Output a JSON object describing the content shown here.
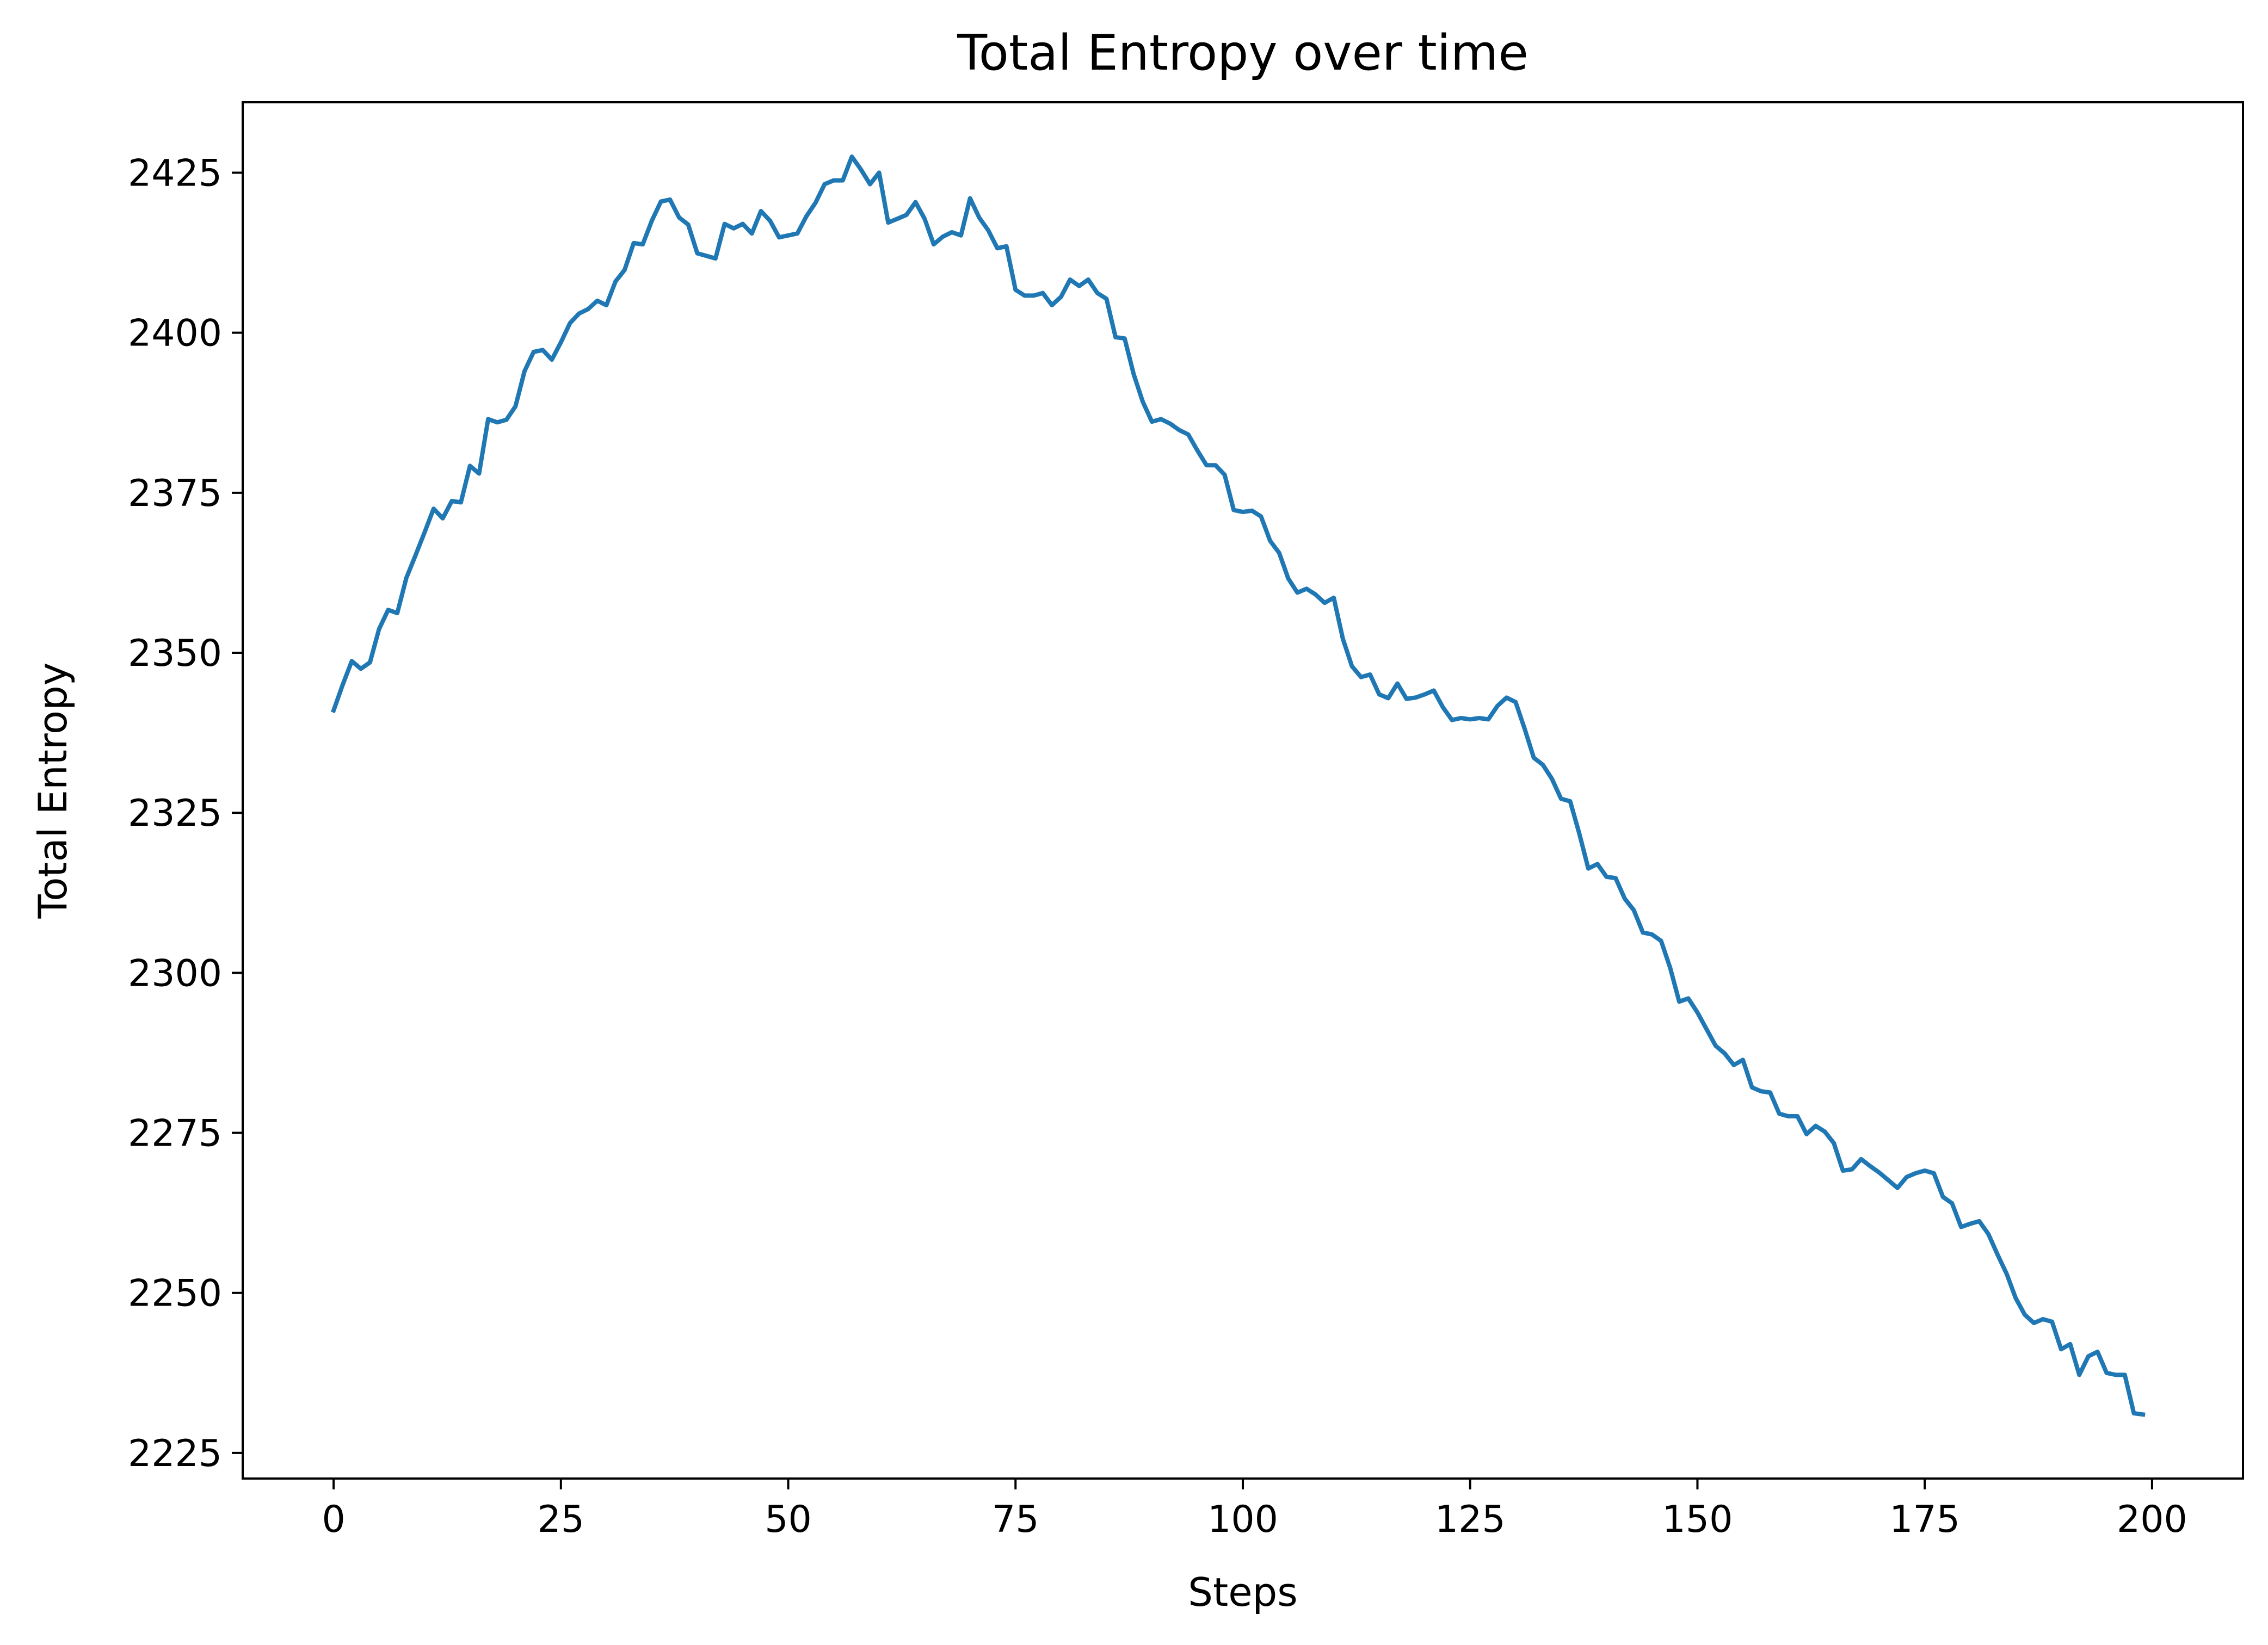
{
  "chart_data": {
    "type": "line",
    "title": "Total Entropy over time",
    "xlabel": "Steps",
    "ylabel": "Total Entropy",
    "xlim": [
      -10,
      210
    ],
    "ylim": [
      2221,
      2436
    ],
    "xticks": [
      0,
      25,
      50,
      75,
      100,
      125,
      150,
      175,
      200
    ],
    "xtick_labels": [
      "0",
      "25",
      "50",
      "75",
      "100",
      "125",
      "150",
      "175",
      "200"
    ],
    "yticks": [
      2225,
      2250,
      2275,
      2300,
      2325,
      2350,
      2375,
      2400,
      2425
    ],
    "ytick_labels": [
      "2225",
      "2250",
      "2275",
      "2300",
      "2325",
      "2350",
      "2375",
      "2400",
      "2425"
    ],
    "grid": false,
    "series": [
      {
        "color": "#1f77b4",
        "x": [
          0,
          1,
          2,
          3,
          4,
          5,
          6,
          7,
          8,
          9,
          10,
          11,
          12,
          13,
          14,
          15,
          16,
          17,
          18,
          19,
          20,
          21,
          22,
          23,
          24,
          25,
          26,
          27,
          28,
          29,
          30,
          31,
          32,
          33,
          34,
          35,
          36,
          37,
          38,
          39,
          40,
          41,
          42,
          43,
          44,
          45,
          46,
          47,
          48,
          49,
          50,
          51,
          52,
          53,
          54,
          55,
          56,
          57,
          58,
          59,
          60,
          61,
          62,
          63,
          64,
          65,
          66,
          67,
          68,
          69,
          70,
          71,
          72,
          73,
          74,
          75,
          76,
          77,
          78,
          79,
          80,
          81,
          82,
          83,
          84,
          85,
          86,
          87,
          88,
          89,
          90,
          91,
          92,
          93,
          94,
          95,
          96,
          97,
          98,
          99,
          100,
          101,
          102,
          103,
          104,
          105,
          106,
          107,
          108,
          109,
          110,
          111,
          112,
          113,
          114,
          115,
          116,
          117,
          118,
          119,
          120,
          121,
          122,
          123,
          124,
          125,
          126,
          127,
          128,
          129,
          130,
          131,
          132,
          133,
          134,
          135,
          136,
          137,
          138,
          139,
          140,
          141,
          142,
          143,
          144,
          145,
          146,
          147,
          148,
          149,
          150,
          151,
          152,
          153,
          154,
          155,
          156,
          157,
          158,
          159,
          160,
          161,
          162,
          163,
          164,
          165,
          166,
          167,
          168,
          169,
          170,
          171,
          172,
          173,
          174,
          175,
          176,
          177,
          178,
          179,
          180,
          181,
          182,
          183,
          184,
          185,
          186,
          187,
          188,
          189,
          190,
          191,
          192,
          193,
          194,
          195,
          196,
          197,
          198,
          199
        ],
        "y": [
          2341,
          2345,
          2348.7,
          2347.5,
          2348.5,
          2353.7,
          2356.7,
          2356.2,
          2361.7,
          2365.2,
          2368.8,
          2372.5,
          2371,
          2373.7,
          2373.5,
          2379.2,
          2378,
          2386.5,
          2386,
          2386.4,
          2388.5,
          2394,
          2397,
          2397.3,
          2395.8,
          2398.5,
          2401.5,
          2403,
          2403.7,
          2405,
          2404.3,
          2408,
          2409.8,
          2414,
          2413.8,
          2417.5,
          2420.5,
          2420.8,
          2418,
          2416.9,
          2412.4,
          2412,
          2411.6,
          2417,
          2416.3,
          2417,
          2415.5,
          2419,
          2417.5,
          2414.9,
          2415.2,
          2415.5,
          2418.2,
          2420.3,
          2423.2,
          2423.8,
          2423.8,
          2427.5,
          2425.5,
          2423.2,
          2425,
          2417.2,
          2417.8,
          2418.4,
          2420.4,
          2417.8,
          2413.8,
          2415,
          2415.7,
          2415.2,
          2421,
          2418,
          2416,
          2413.2,
          2413.5,
          2406.7,
          2405.8,
          2405.8,
          2406.2,
          2404.3,
          2405.6,
          2408.3,
          2407.3,
          2408.3,
          2406.2,
          2405.3,
          2399.3,
          2399.1,
          2393.5,
          2389.2,
          2386.1,
          2386.5,
          2385.8,
          2384.8,
          2384.1,
          2381.6,
          2379.3,
          2379.3,
          2377.8,
          2372.3,
          2372,
          2372.2,
          2371.3,
          2367.5,
          2365.6,
          2361.6,
          2359.4,
          2360,
          2359.1,
          2357.8,
          2358.6,
          2352.2,
          2347.9,
          2346.2,
          2346.6,
          2343.5,
          2342.9,
          2345.2,
          2342.8,
          2343,
          2343.5,
          2344.1,
          2341.5,
          2339.5,
          2339.8,
          2339.6,
          2339.8,
          2339.6,
          2341.7,
          2343,
          2342.3,
          2338.1,
          2333.6,
          2332.5,
          2330.3,
          2327.2,
          2326.8,
          2321.8,
          2316.3,
          2317,
          2315,
          2314.8,
          2311.6,
          2309.8,
          2306.3,
          2306,
          2305,
          2300.8,
          2295.5,
          2296,
          2293.8,
          2291.2,
          2288.6,
          2287.4,
          2285.6,
          2286.4,
          2282.1,
          2281.5,
          2281.3,
          2278,
          2277.6,
          2277.6,
          2274.8,
          2276.1,
          2275.2,
          2273.4,
          2269.1,
          2269.3,
          2270.9,
          2269.8,
          2268.8,
          2267.6,
          2266.4,
          2268.1,
          2268.7,
          2269.1,
          2268.7,
          2265,
          2264,
          2260.3,
          2260.8,
          2261.2,
          2259.2,
          2256,
          2253,
          2249.2,
          2246.6,
          2245.3,
          2245.9,
          2245.5,
          2241.2,
          2242,
          2237.2,
          2240.1,
          2240.8,
          2237.5,
          2237.2,
          2237.2,
          2231.2,
          2231
        ]
      }
    ]
  }
}
